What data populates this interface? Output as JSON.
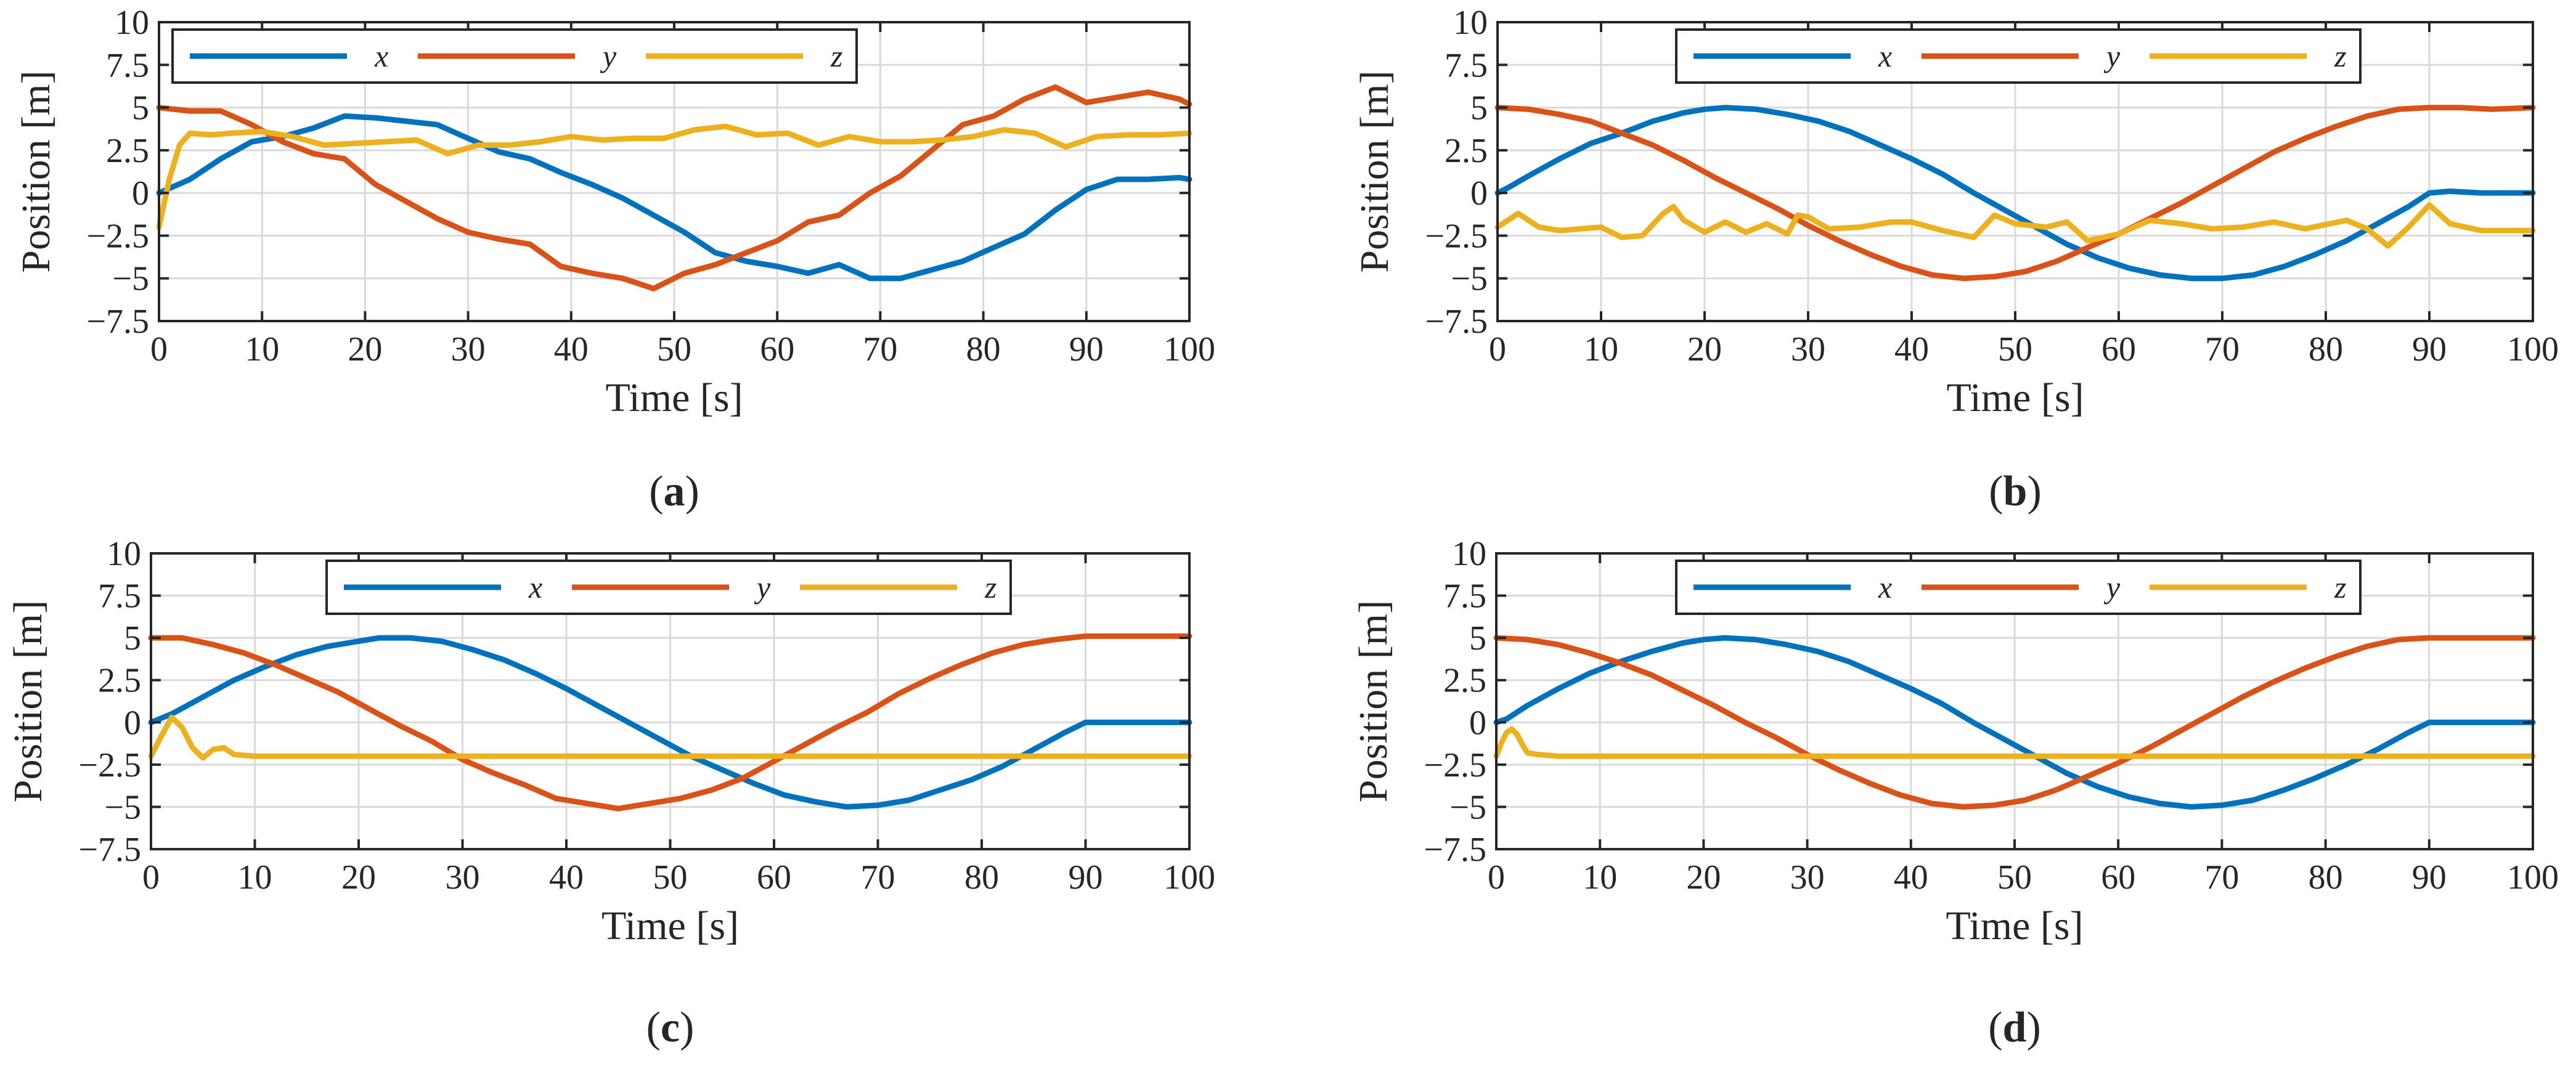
{
  "colors": {
    "x": "#0072BD",
    "y": "#D95319",
    "z": "#EDB120"
  },
  "chart_data": [
    {
      "id": "a",
      "type": "line",
      "caption_letter": "a",
      "xlabel": "Time [s]",
      "ylabel": "Position [m]",
      "xlim": [
        0,
        100
      ],
      "ylim": [
        -7.5,
        10
      ],
      "xticks": [
        0,
        10,
        20,
        30,
        40,
        50,
        60,
        70,
        80,
        90,
        100
      ],
      "yticks": [
        -7.5,
        -5,
        -2.5,
        0,
        2.5,
        5,
        7.5,
        10
      ],
      "ytick_labels": [
        "−7.5",
        "−5",
        "−2.5",
        "0",
        "2.5",
        "5",
        "7.5",
        "10"
      ],
      "legend": {
        "position": "top-left",
        "entries": [
          "x",
          "y",
          "z"
        ]
      },
      "series": [
        {
          "name": "x",
          "x": [
            0,
            3,
            6,
            9,
            12,
            15,
            18,
            21,
            24,
            27,
            30,
            33,
            36,
            39,
            42,
            45,
            48,
            51,
            54,
            57,
            60,
            63,
            66,
            69,
            72,
            75,
            78,
            81,
            84,
            87,
            90,
            93,
            96,
            99,
            100
          ],
          "values": [
            0,
            0.8,
            2,
            3,
            3.3,
            3.8,
            4.5,
            4.4,
            4.2,
            4,
            3.2,
            2.4,
            2,
            1.2,
            0.5,
            -0.3,
            -1.3,
            -2.3,
            -3.5,
            -4,
            -4.3,
            -4.7,
            -4.2,
            -5,
            -5,
            -4.5,
            -4,
            -3.2,
            -2.4,
            -1,
            0.2,
            0.8,
            0.8,
            0.9,
            0.8
          ]
        },
        {
          "name": "y",
          "x": [
            0,
            3,
            6,
            9,
            12,
            15,
            18,
            21,
            24,
            27,
            30,
            33,
            36,
            39,
            42,
            45,
            48,
            51,
            54,
            57,
            60,
            63,
            66,
            69,
            72,
            75,
            78,
            81,
            84,
            87,
            90,
            93,
            96,
            99,
            100
          ],
          "values": [
            5,
            4.8,
            4.8,
            4,
            3,
            2.3,
            2,
            0.5,
            -0.5,
            -1.5,
            -2.3,
            -2.7,
            -3,
            -4.3,
            -4.7,
            -5,
            -5.6,
            -4.7,
            -4.2,
            -3.5,
            -2.8,
            -1.7,
            -1.3,
            0,
            1,
            2.5,
            4,
            4.5,
            5.5,
            6.2,
            5.3,
            5.6,
            5.9,
            5.5,
            5.2
          ]
        },
        {
          "name": "z",
          "x": [
            0,
            1,
            2,
            3,
            5,
            7,
            10,
            13,
            16,
            19,
            22,
            25,
            28,
            31,
            34,
            37,
            40,
            43,
            46,
            49,
            52,
            55,
            58,
            61,
            64,
            67,
            70,
            73,
            76,
            79,
            82,
            85,
            88,
            91,
            94,
            97,
            100
          ],
          "values": [
            -2,
            0.8,
            2.8,
            3.5,
            3.4,
            3.5,
            3.6,
            3.3,
            2.8,
            2.9,
            3,
            3.1,
            2.3,
            2.8,
            2.8,
            3,
            3.3,
            3.1,
            3.2,
            3.2,
            3.7,
            3.9,
            3.4,
            3.5,
            2.8,
            3.3,
            3,
            3,
            3.1,
            3.3,
            3.7,
            3.5,
            2.7,
            3.3,
            3.4,
            3.4,
            3.5
          ]
        }
      ]
    },
    {
      "id": "b",
      "type": "line",
      "caption_letter": "b",
      "xlabel": "Time [s]",
      "ylabel": "Position [m]",
      "xlim": [
        0,
        100
      ],
      "ylim": [
        -7.5,
        10
      ],
      "xticks": [
        0,
        10,
        20,
        30,
        40,
        50,
        60,
        70,
        80,
        90,
        100
      ],
      "yticks": [
        -7.5,
        -5,
        -2.5,
        0,
        2.5,
        5,
        7.5,
        10
      ],
      "ytick_labels": [
        "−7.5",
        "−5",
        "−2.5",
        "0",
        "2.5",
        "5",
        "7.5",
        "10"
      ],
      "legend": {
        "position": "top-right",
        "entries": [
          "x",
          "y",
          "z"
        ]
      },
      "series": [
        {
          "name": "x",
          "x": [
            0,
            1,
            3,
            6,
            9,
            12,
            15,
            18,
            20,
            22,
            25,
            28,
            31,
            34,
            37,
            40,
            43,
            46,
            49,
            52,
            55,
            58,
            61,
            64,
            67,
            70,
            73,
            76,
            79,
            82,
            85,
            88,
            90,
            92,
            95,
            98,
            100
          ],
          "values": [
            0,
            0.3,
            1,
            2,
            2.9,
            3.5,
            4.2,
            4.7,
            4.9,
            5,
            4.9,
            4.6,
            4.2,
            3.6,
            2.8,
            2,
            1.1,
            0,
            -1,
            -2,
            -3,
            -3.8,
            -4.4,
            -4.8,
            -5,
            -5,
            -4.8,
            -4.3,
            -3.6,
            -2.8,
            -1.8,
            -0.8,
            0,
            0.1,
            0,
            0,
            0
          ]
        },
        {
          "name": "y",
          "x": [
            0,
            3,
            6,
            9,
            12,
            15,
            18,
            21,
            24,
            27,
            30,
            33,
            36,
            39,
            42,
            45,
            48,
            51,
            54,
            57,
            60,
            63,
            66,
            69,
            72,
            75,
            78,
            81,
            84,
            87,
            90,
            93,
            96,
            100
          ],
          "values": [
            5,
            4.9,
            4.6,
            4.2,
            3.5,
            2.8,
            1.9,
            0.9,
            0,
            -0.9,
            -1.9,
            -2.8,
            -3.6,
            -4.3,
            -4.8,
            -5,
            -4.9,
            -4.6,
            -4,
            -3.2,
            -2.4,
            -1.5,
            -0.6,
            0.4,
            1.4,
            2.4,
            3.2,
            3.9,
            4.5,
            4.9,
            5,
            5,
            4.9,
            5
          ]
        },
        {
          "name": "z",
          "x": [
            0,
            2,
            4,
            6,
            8,
            10,
            12,
            14,
            16,
            17,
            18,
            20,
            22,
            24,
            26,
            28,
            29,
            30,
            32,
            35,
            38,
            40,
            43,
            46,
            48,
            50,
            53,
            55,
            57,
            60,
            63,
            66,
            69,
            72,
            75,
            78,
            82,
            84,
            86,
            88,
            90,
            92,
            95,
            100
          ],
          "values": [
            -2,
            -1.2,
            -2,
            -2.2,
            -2.1,
            -2,
            -2.6,
            -2.5,
            -1.2,
            -0.8,
            -1.6,
            -2.3,
            -1.7,
            -2.3,
            -1.8,
            -2.4,
            -1.3,
            -1.4,
            -2.1,
            -2,
            -1.7,
            -1.7,
            -2.2,
            -2.6,
            -1.3,
            -1.8,
            -2,
            -1.7,
            -2.8,
            -2.4,
            -1.6,
            -1.8,
            -2.1,
            -2,
            -1.7,
            -2.1,
            -1.6,
            -2.1,
            -3.1,
            -2,
            -0.7,
            -1.8,
            -2.2,
            -2.2
          ]
        }
      ]
    },
    {
      "id": "c",
      "type": "line",
      "caption_letter": "c",
      "xlabel": "Time [s]",
      "ylabel": "Position [m]",
      "xlim": [
        0,
        100
      ],
      "ylim": [
        -7.5,
        10
      ],
      "xticks": [
        0,
        10,
        20,
        30,
        40,
        50,
        60,
        70,
        80,
        90,
        100
      ],
      "yticks": [
        -7.5,
        -5,
        -2.5,
        0,
        2.5,
        5,
        7.5,
        10
      ],
      "ytick_labels": [
        "−7.5",
        "−5",
        "−2.5",
        "0",
        "2.5",
        "5",
        "7.5",
        "10"
      ],
      "legend": {
        "position": "top-center",
        "entries": [
          "x",
          "y",
          "z"
        ]
      },
      "series": [
        {
          "name": "x",
          "x": [
            0,
            2,
            5,
            8,
            11,
            14,
            17,
            20,
            22,
            25,
            28,
            31,
            34,
            37,
            40,
            43,
            46,
            49,
            52,
            55,
            58,
            61,
            64,
            67,
            70,
            73,
            76,
            79,
            82,
            85,
            88,
            90,
            92,
            95,
            98,
            100
          ],
          "values": [
            0,
            0.5,
            1.5,
            2.5,
            3.3,
            4,
            4.5,
            4.8,
            5,
            5,
            4.8,
            4.3,
            3.7,
            2.9,
            2,
            1,
            0,
            -1,
            -2,
            -2.8,
            -3.6,
            -4.3,
            -4.7,
            -5,
            -4.9,
            -4.6,
            -4,
            -3.4,
            -2.6,
            -1.6,
            -0.6,
            0,
            0,
            0,
            0,
            0
          ]
        },
        {
          "name": "y",
          "x": [
            0,
            3,
            6,
            9,
            12,
            15,
            18,
            21,
            24,
            27,
            30,
            33,
            36,
            39,
            42,
            45,
            48,
            51,
            54,
            57,
            60,
            63,
            66,
            69,
            72,
            75,
            78,
            81,
            84,
            87,
            90,
            93,
            96,
            100
          ],
          "values": [
            5,
            5,
            4.6,
            4.1,
            3.4,
            2.6,
            1.8,
            0.8,
            -0.2,
            -1.1,
            -2.2,
            -3,
            -3.7,
            -4.5,
            -4.8,
            -5.1,
            -4.8,
            -4.5,
            -4,
            -3.3,
            -2.3,
            -1.3,
            -0.3,
            0.6,
            1.7,
            2.6,
            3.4,
            4.1,
            4.6,
            4.9,
            5.1,
            5.1,
            5.1,
            5.1
          ]
        },
        {
          "name": "z",
          "x": [
            0,
            1,
            2,
            3,
            4,
            5,
            6,
            7,
            8,
            10,
            15,
            20,
            30,
            40,
            50,
            60,
            70,
            80,
            90,
            100
          ],
          "values": [
            -2,
            -0.8,
            0.3,
            -0.3,
            -1.5,
            -2.1,
            -1.6,
            -1.5,
            -1.9,
            -2,
            -2,
            -2,
            -2,
            -2,
            -2,
            -2,
            -2,
            -2,
            -2,
            -2
          ]
        }
      ]
    },
    {
      "id": "d",
      "type": "line",
      "caption_letter": "d",
      "xlabel": "Time [s]",
      "ylabel": "Position [m]",
      "xlim": [
        0,
        100
      ],
      "ylim": [
        -7.5,
        10
      ],
      "xticks": [
        0,
        10,
        20,
        30,
        40,
        50,
        60,
        70,
        80,
        90,
        100
      ],
      "yticks": [
        -7.5,
        -5,
        -2.5,
        0,
        2.5,
        5,
        7.5,
        10
      ],
      "ytick_labels": [
        "−7.5",
        "−5",
        "−2.5",
        "0",
        "2.5",
        "5",
        "7.5",
        "10"
      ],
      "legend": {
        "position": "top-right",
        "entries": [
          "x",
          "y",
          "z"
        ]
      },
      "series": [
        {
          "name": "x",
          "x": [
            0,
            1,
            3,
            6,
            9,
            12,
            15,
            18,
            20,
            22,
            25,
            28,
            31,
            34,
            37,
            40,
            43,
            46,
            49,
            52,
            55,
            58,
            61,
            64,
            67,
            70,
            73,
            76,
            79,
            82,
            85,
            88,
            90,
            92,
            95,
            98,
            100
          ],
          "values": [
            0,
            0.2,
            1,
            2,
            2.9,
            3.6,
            4.2,
            4.7,
            4.9,
            5,
            4.9,
            4.6,
            4.2,
            3.6,
            2.8,
            2,
            1.1,
            0,
            -1,
            -2,
            -3,
            -3.8,
            -4.4,
            -4.8,
            -5,
            -4.9,
            -4.6,
            -4,
            -3.3,
            -2.5,
            -1.6,
            -0.6,
            0,
            0,
            0,
            0,
            0
          ]
        },
        {
          "name": "y",
          "x": [
            0,
            3,
            6,
            9,
            12,
            15,
            18,
            21,
            24,
            27,
            30,
            33,
            36,
            39,
            42,
            45,
            48,
            51,
            54,
            57,
            60,
            63,
            66,
            69,
            72,
            75,
            78,
            81,
            84,
            87,
            90,
            93,
            96,
            100
          ],
          "values": [
            5,
            4.9,
            4.6,
            4.1,
            3.5,
            2.8,
            1.9,
            1,
            0,
            -0.9,
            -1.9,
            -2.8,
            -3.6,
            -4.3,
            -4.8,
            -5,
            -4.9,
            -4.6,
            -4,
            -3.2,
            -2.4,
            -1.5,
            -0.5,
            0.5,
            1.5,
            2.4,
            3.2,
            3.9,
            4.5,
            4.9,
            5,
            5,
            5,
            5
          ]
        },
        {
          "name": "z",
          "x": [
            0,
            0.5,
            1,
            1.5,
            2,
            2.5,
            3,
            4,
            6,
            10,
            20,
            30,
            40,
            50,
            60,
            70,
            80,
            90,
            100
          ],
          "values": [
            -2,
            -1.2,
            -0.6,
            -0.4,
            -0.7,
            -1.3,
            -1.8,
            -1.9,
            -2,
            -2,
            -2,
            -2,
            -2,
            -2,
            -2,
            -2,
            -2,
            -2,
            -2
          ]
        }
      ]
    }
  ]
}
